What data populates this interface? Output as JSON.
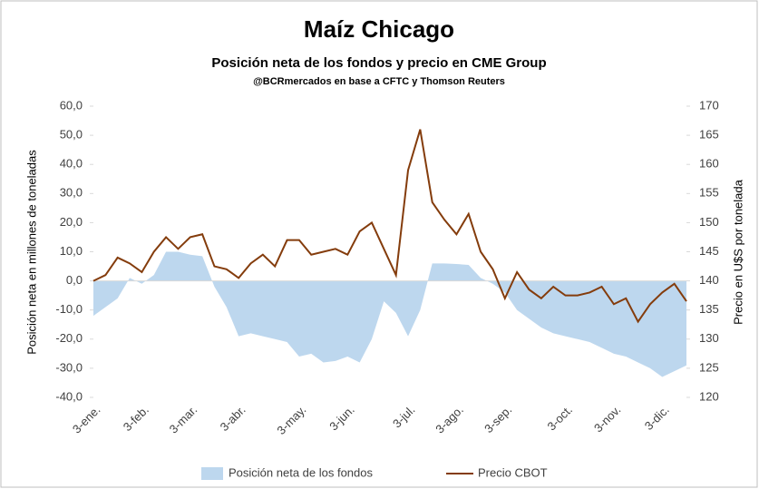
{
  "chart_data": {
    "type": "area_line",
    "title": "Maíz Chicago",
    "subtitle": "Posición neta de los fondos y precio en CME Group",
    "source": "@BCRmercados en base a CFTC y Thomson Reuters",
    "y_label": "Posición neta en millones de toneladas",
    "y2_label": "Precio en U$S por tonelada",
    "categories": [
      "3-ene.",
      null,
      null,
      null,
      "3-feb.",
      null,
      null,
      null,
      "3-mar.",
      null,
      null,
      null,
      "3-abr.",
      null,
      null,
      null,
      null,
      "3-may.",
      null,
      null,
      null,
      "3-jun.",
      null,
      null,
      null,
      null,
      "3-jul.",
      null,
      null,
      null,
      "3-ago.",
      null,
      null,
      null,
      "3-sep.",
      null,
      null,
      null,
      null,
      "3-oct.",
      null,
      null,
      null,
      "3-nov.",
      null,
      null,
      null,
      "3-dic.",
      null,
      null
    ],
    "series": [
      {
        "name": "Posición neta de los fondos",
        "color": "#bdd7ee",
        "kind": "area",
        "values": [
          -12,
          -9,
          -6,
          1,
          -1,
          2,
          10,
          10,
          9,
          8.5,
          -2,
          -9,
          -19,
          -18,
          -19,
          -20,
          -21,
          -26,
          -25,
          -28,
          -27.5,
          -26,
          -28,
          -20,
          -7,
          -11,
          -19,
          -10,
          6,
          6,
          5.8,
          5.5,
          1,
          -1,
          -4,
          -10,
          -13,
          -16,
          -18,
          -19,
          -20,
          -21,
          -23,
          -25,
          -26,
          -28,
          -30,
          -33,
          -31,
          -29
        ]
      },
      {
        "name": "Precio CBOT",
        "color": "#843c0c",
        "kind": "line",
        "axis": "y2",
        "values": [
          140,
          141,
          144,
          143,
          141.5,
          145,
          147.5,
          145.5,
          147.5,
          148,
          142.5,
          142,
          140.5,
          143,
          144.5,
          142.5,
          147,
          147,
          144.5,
          145,
          145.5,
          144.5,
          148.5,
          150,
          145.5,
          141,
          159,
          166,
          153.5,
          150.5,
          148,
          151.5,
          145,
          142,
          137,
          141.5,
          138.5,
          137,
          139,
          137.5,
          137.5,
          138,
          139,
          136,
          137,
          133,
          136,
          138,
          139.5,
          136.5
        ]
      }
    ],
    "ylim": [
      -40,
      60
    ],
    "yticks": [
      {
        "value": -40,
        "label": "-40,0"
      },
      {
        "value": -30,
        "label": "-30,0"
      },
      {
        "value": -20,
        "label": "-20,0"
      },
      {
        "value": -10,
        "label": "-10,0"
      },
      {
        "value": 0,
        "label": "0,0"
      },
      {
        "value": 10,
        "label": "10,0"
      },
      {
        "value": 20,
        "label": "20,0"
      },
      {
        "value": 30,
        "label": "30,0"
      },
      {
        "value": 40,
        "label": "40,0"
      },
      {
        "value": 50,
        "label": "50,0"
      },
      {
        "value": 60,
        "label": "60,0"
      }
    ],
    "y2lim": [
      120,
      170
    ],
    "y2ticks": [
      120,
      125,
      130,
      135,
      140,
      145,
      150,
      155,
      160,
      165,
      170
    ],
    "legend": "bottom"
  }
}
